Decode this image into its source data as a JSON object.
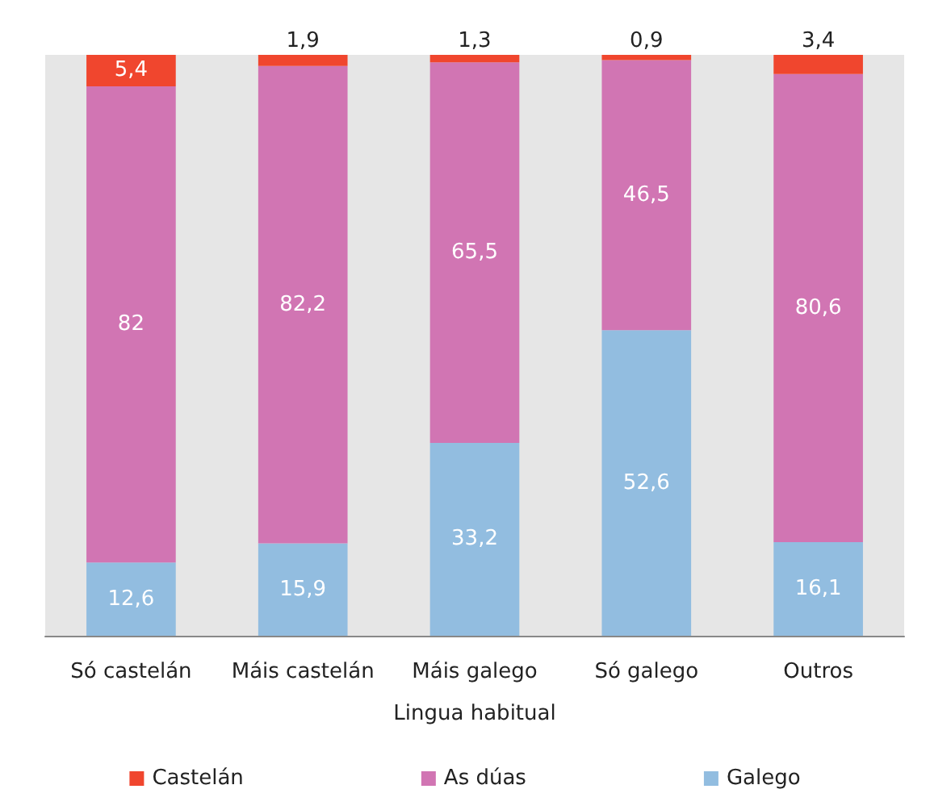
{
  "chart_data": {
    "type": "bar",
    "stacked": true,
    "xlabel": "Lingua habitual",
    "categories": [
      "Só castelán",
      "Máis castelán",
      "Máis galego",
      "Só galego",
      "Outros"
    ],
    "series": [
      {
        "name": "Galego",
        "color": "#92bde0",
        "values": [
          12.6,
          15.9,
          33.2,
          52.6,
          16.1
        ],
        "value_labels": [
          "12,6",
          "15,9",
          "33,2",
          "52,6",
          "16,1"
        ]
      },
      {
        "name": "As dúas",
        "color": "#d175b3",
        "values": [
          82,
          82.2,
          65.5,
          46.5,
          80.6
        ],
        "value_labels": [
          "82",
          "82,2",
          "65,5",
          "46,5",
          "80,6"
        ]
      },
      {
        "name": "Castelán",
        "color": "#f0462e",
        "values": [
          5.4,
          1.9,
          1.3,
          0.9,
          3.4
        ],
        "value_labels": [
          "5,4",
          "1,9",
          "1,3",
          "0,9",
          "3,4"
        ]
      }
    ],
    "ylim": [
      0,
      100
    ],
    "tick_labels": "x",
    "legend": "bottom"
  }
}
